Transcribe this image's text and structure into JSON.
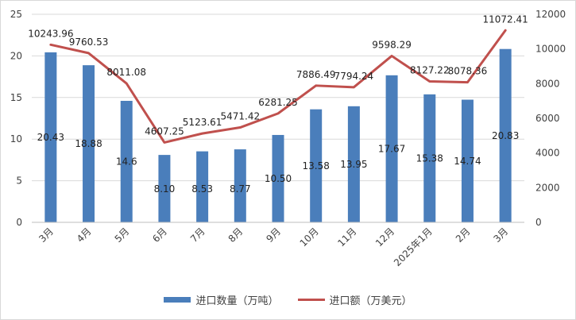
{
  "chart_data": {
    "type": "bar+line",
    "categories": [
      "3月",
      "4月",
      "5月",
      "6月",
      "7月",
      "8月",
      "9月",
      "10月",
      "11月",
      "12月",
      "2025年1月",
      "2月",
      "3月"
    ],
    "series": [
      {
        "name": "进口数量（万吨）",
        "type": "bar",
        "axis": "left",
        "color": "#4a7ebb",
        "values": [
          20.43,
          18.88,
          14.6,
          8.1,
          8.53,
          8.77,
          10.5,
          13.58,
          13.95,
          17.67,
          15.38,
          14.74,
          20.83
        ],
        "labels": [
          "20.43",
          "18.88",
          "14.6",
          "8.10",
          "8.53",
          "8.77",
          "10.50",
          "13.58",
          "13.95",
          "17.67",
          "15.38",
          "14.74",
          "20.83"
        ]
      },
      {
        "name": "进口额（万美元）",
        "type": "line",
        "axis": "right",
        "color": "#c0504d",
        "values": [
          10243.96,
          9760.53,
          8011.08,
          4607.25,
          5123.61,
          5471.42,
          6281.25,
          7886.49,
          7794.24,
          9598.29,
          8127.22,
          8078.36,
          11072.41
        ],
        "labels": [
          "10243.96",
          "9760.53",
          "8011.08",
          "4607.25",
          "5123.61",
          "5471.42",
          "6281.25",
          "7886.49",
          "7794.24",
          "9598.29",
          "8127.22",
          "8078.36",
          "11072.41"
        ]
      }
    ],
    "y_left": {
      "min": 0,
      "max": 25,
      "ticks": [
        "0",
        "5",
        "10",
        "15",
        "20",
        "25"
      ]
    },
    "y_right": {
      "min": 0,
      "max": 12000,
      "ticks": [
        "0",
        "2000",
        "4000",
        "6000",
        "8000",
        "10000",
        "12000"
      ]
    },
    "grid": true,
    "legend_position": "bottom"
  }
}
